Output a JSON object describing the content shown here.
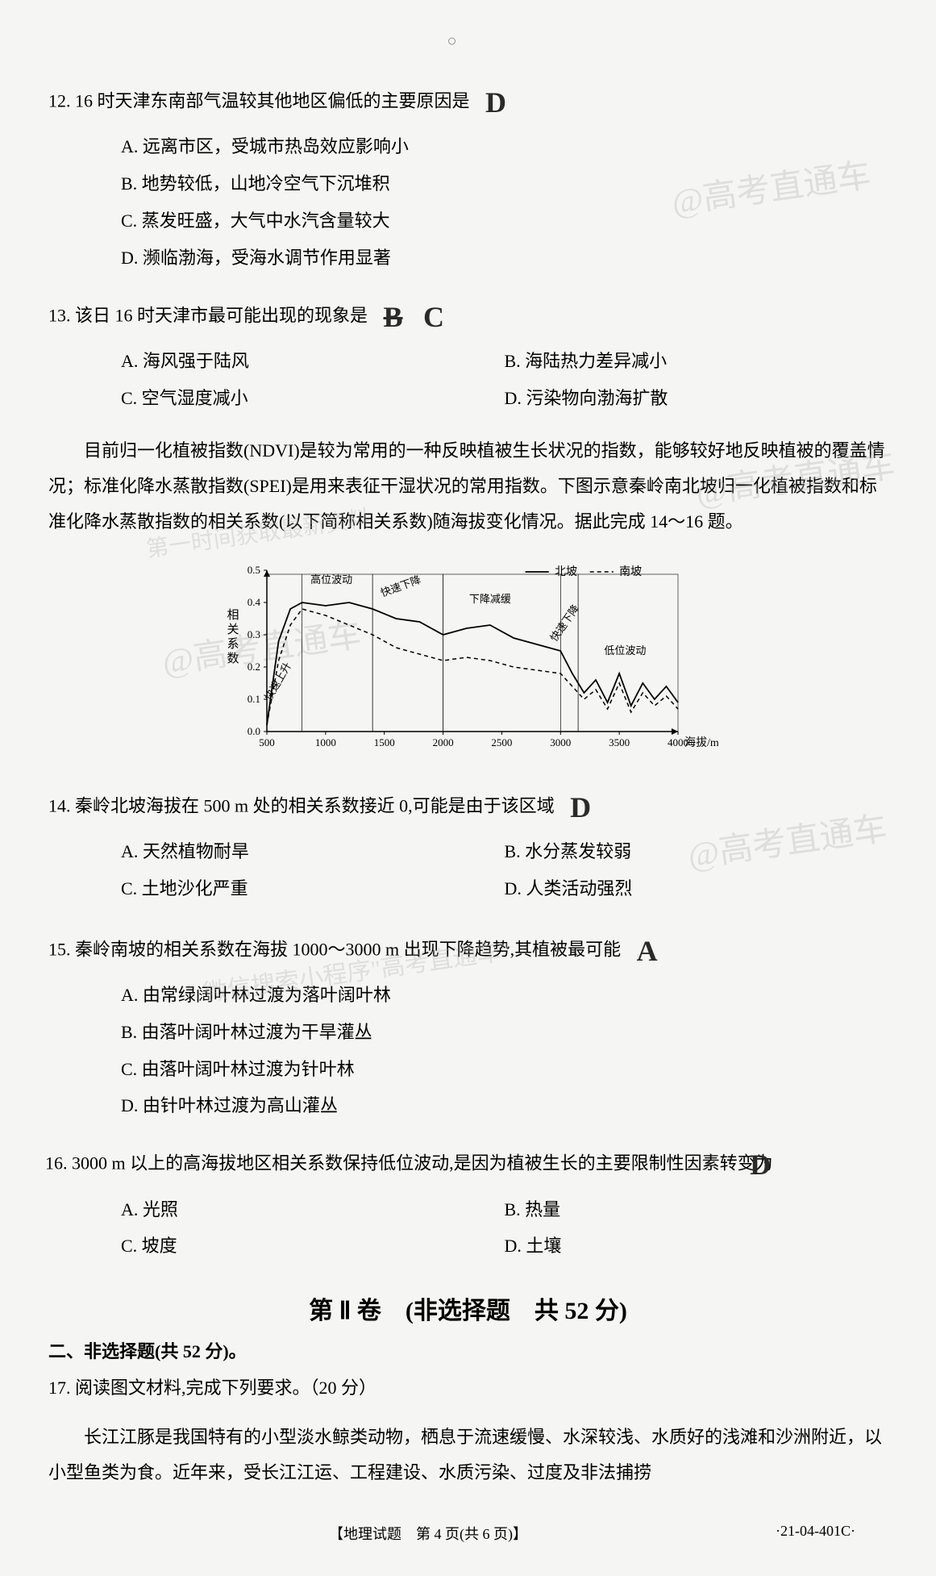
{
  "header": {
    "mark": "○"
  },
  "watermarks": {
    "w1": "@高考直通车",
    "w2": "@高考直通车",
    "w3": "@高考直通车",
    "w4": "@高考直通车",
    "w5": "微信搜索小程序\"高考直通车\"",
    "w6": "第一时间获取最新资料"
  },
  "q12": {
    "stem": "12. 16 时天津东南部气温较其他地区偏低的主要原因是",
    "answer": "D",
    "opts": {
      "A": "A. 远离市区，受城市热岛效应影响小",
      "B": "B. 地势较低，山地冷空气下沉堆积",
      "C": "C. 蒸发旺盛，大气中水汽含量较大",
      "D": "D. 濒临渤海，受海水调节作用显著"
    }
  },
  "q13": {
    "stem": "13. 该日 16 时天津市最可能出现的现象是",
    "scribble": "B",
    "answer": "C",
    "opts": {
      "A": "A. 海风强于陆风",
      "B": "B. 海陆热力差异减小",
      "C": "C. 空气湿度减小",
      "D": "D. 污染物向渤海扩散"
    }
  },
  "passage1": "目前归一化植被指数(NDVI)是较为常用的一种反映植被生长状况的指数，能够较好地反映植被的覆盖情况；标准化降水蒸散指数(SPEI)是用来表征干湿状况的常用指数。下图示意秦岭南北坡归一化植被指数和标准化降水蒸散指数的相关系数(以下简称相关系数)随海拔变化情况。据此完成 14～16 题。",
  "chart": {
    "type": "line",
    "x_label": "海拔/m",
    "y_label": "相关系数",
    "xlim": [
      500,
      4000
    ],
    "ylim": [
      0,
      0.5
    ],
    "xticks": [
      500,
      1000,
      1500,
      2000,
      2500,
      3000,
      3500,
      4000
    ],
    "yticks": [
      0,
      0.1,
      0.2,
      0.3,
      0.4,
      0.5
    ],
    "legend": {
      "north": "北坡",
      "south": "南坡",
      "north_style": "solid",
      "south_style": "dashed"
    },
    "annotations": [
      "快速上升",
      "高位波动",
      "快速下降",
      "下降减缓",
      "快速下降",
      "低位波动"
    ],
    "colors": {
      "line": "#000000",
      "grid": "#cccccc",
      "bg": "#f5f5f3"
    },
    "north_data": [
      [
        500,
        0.02
      ],
      [
        600,
        0.28
      ],
      [
        700,
        0.38
      ],
      [
        800,
        0.4
      ],
      [
        1000,
        0.39
      ],
      [
        1200,
        0.4
      ],
      [
        1400,
        0.38
      ],
      [
        1600,
        0.35
      ],
      [
        1800,
        0.34
      ],
      [
        2000,
        0.3
      ],
      [
        2200,
        0.32
      ],
      [
        2400,
        0.33
      ],
      [
        2600,
        0.29
      ],
      [
        2800,
        0.27
      ],
      [
        3000,
        0.25
      ],
      [
        3100,
        0.18
      ],
      [
        3200,
        0.12
      ],
      [
        3300,
        0.16
      ],
      [
        3400,
        0.09
      ],
      [
        3500,
        0.18
      ],
      [
        3600,
        0.08
      ],
      [
        3700,
        0.15
      ],
      [
        3800,
        0.1
      ],
      [
        3900,
        0.14
      ],
      [
        4000,
        0.09
      ]
    ],
    "south_data": [
      [
        500,
        0.02
      ],
      [
        600,
        0.22
      ],
      [
        700,
        0.33
      ],
      [
        800,
        0.38
      ],
      [
        1000,
        0.36
      ],
      [
        1200,
        0.33
      ],
      [
        1400,
        0.3
      ],
      [
        1600,
        0.26
      ],
      [
        1800,
        0.24
      ],
      [
        2000,
        0.22
      ],
      [
        2200,
        0.23
      ],
      [
        2400,
        0.22
      ],
      [
        2600,
        0.2
      ],
      [
        2800,
        0.19
      ],
      [
        3000,
        0.18
      ],
      [
        3100,
        0.14
      ],
      [
        3200,
        0.1
      ],
      [
        3300,
        0.13
      ],
      [
        3400,
        0.07
      ],
      [
        3500,
        0.15
      ],
      [
        3600,
        0.06
      ],
      [
        3700,
        0.12
      ],
      [
        3800,
        0.08
      ],
      [
        3900,
        0.11
      ],
      [
        4000,
        0.07
      ]
    ]
  },
  "q14": {
    "stem": "14. 秦岭北坡海拔在 500 m 处的相关系数接近 0,可能是由于该区域",
    "answer": "D",
    "opts": {
      "A": "A. 天然植物耐旱",
      "B": "B. 水分蒸发较弱",
      "C": "C. 土地沙化严重",
      "D": "D. 人类活动强烈"
    }
  },
  "q15": {
    "stem": "15. 秦岭南坡的相关系数在海拔 1000～3000 m 出现下降趋势,其植被最可能",
    "answer": "A",
    "opts": {
      "A": "A. 由常绿阔叶林过渡为落叶阔叶林",
      "B": "B. 由落叶阔叶林过渡为干旱灌丛",
      "C": "C. 由落叶阔叶林过渡为针叶林",
      "D": "D. 由针叶林过渡为高山灌丛"
    }
  },
  "q16": {
    "stem": "16. 3000 m 以上的高海拔地区相关系数保持低位波动,是因为植被生长的主要限制性因素转变为",
    "answer": "D",
    "opts": {
      "A": "A. 光照",
      "B": "B. 热量",
      "C": "C. 坡度",
      "D": "D. 土壤"
    }
  },
  "section2": {
    "title": "第 Ⅱ 卷　(非选择题　共 52 分)",
    "sub": "二、非选择题(共 52 分)。"
  },
  "q17": {
    "stem": "17. 阅读图文材料,完成下列要求。（20 分）",
    "passage": "长江江豚是我国特有的小型淡水鲸类动物，栖息于流速缓慢、水深较浅、水质好的浅滩和沙洲附近，以小型鱼类为食。近年来，受长江江运、工程建设、水质污染、过度及非法捕捞"
  },
  "footer": {
    "center": "【地理试题　第 4 页(共 6 页)】",
    "right": "·21-04-401C·"
  }
}
